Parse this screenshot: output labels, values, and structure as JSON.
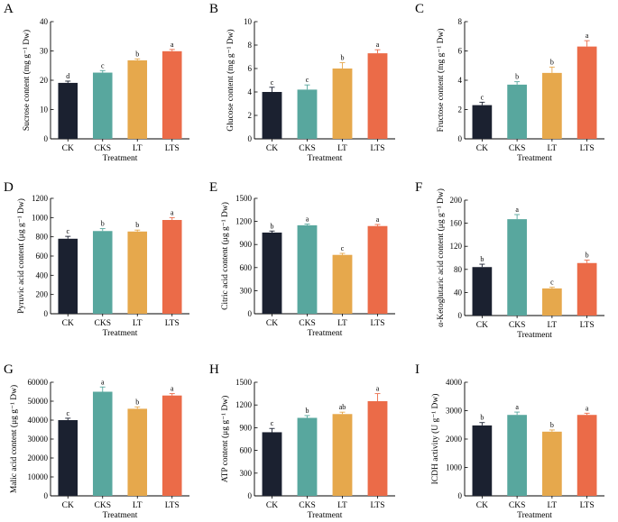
{
  "colors": {
    "CK": "#1b2130",
    "CKS": "#58a79e",
    "LT": "#e6a84c",
    "LTS": "#eb6b48"
  },
  "chart_data": [
    {
      "type": "bar",
      "panel": "A",
      "categories": [
        "CK",
        "CKS",
        "LT",
        "LTS"
      ],
      "values": [
        19.1,
        22.6,
        26.8,
        29.9
      ],
      "errors": [
        0.6,
        0.7,
        0.5,
        0.6
      ],
      "letters": [
        "d",
        "c",
        "b",
        "a"
      ],
      "ylabel": "Sucrose content (mg g⁻¹ Dw)",
      "xlabel": "Treatment",
      "ylim": [
        0,
        40
      ],
      "yticks": [
        0,
        10,
        20,
        30,
        40
      ]
    },
    {
      "type": "bar",
      "panel": "B",
      "categories": [
        "CK",
        "CKS",
        "LT",
        "LTS"
      ],
      "values": [
        4.0,
        4.2,
        6.0,
        7.3
      ],
      "errors": [
        0.4,
        0.4,
        0.5,
        0.3
      ],
      "letters": [
        "c",
        "c",
        "b",
        "a"
      ],
      "ylabel": "Glucose content (mg g⁻¹ Dw)",
      "xlabel": "Treatment",
      "ylim": [
        0,
        10
      ],
      "yticks": [
        0,
        2,
        4,
        6,
        8,
        10
      ]
    },
    {
      "type": "bar",
      "panel": "C",
      "categories": [
        "CK",
        "CKS",
        "LT",
        "LTS"
      ],
      "values": [
        2.3,
        3.7,
        4.5,
        6.3
      ],
      "errors": [
        0.2,
        0.2,
        0.4,
        0.4
      ],
      "letters": [
        "c",
        "b",
        "b",
        "a"
      ],
      "ylabel": "Fructose content (mg g⁻¹ Dw)",
      "xlabel": "Treatment",
      "ylim": [
        0,
        8
      ],
      "yticks": [
        0,
        2,
        4,
        6,
        8
      ]
    },
    {
      "type": "bar",
      "panel": "D",
      "categories": [
        "CK",
        "CKS",
        "LT",
        "LTS"
      ],
      "values": [
        780,
        860,
        855,
        975
      ],
      "errors": [
        25,
        25,
        15,
        25
      ],
      "letters": [
        "c",
        "b",
        "b",
        "a"
      ],
      "ylabel": "Pyruvic acid content (μg g⁻¹ Dw)",
      "xlabel": "Treatment",
      "ylim": [
        0,
        1200
      ],
      "yticks": [
        0,
        200,
        400,
        600,
        800,
        1000,
        1200
      ]
    },
    {
      "type": "bar",
      "panel": "E",
      "categories": [
        "CK",
        "CKS",
        "LT",
        "LTS"
      ],
      "values": [
        1055,
        1150,
        765,
        1140
      ],
      "errors": [
        20,
        15,
        20,
        20
      ],
      "letters": [
        "b",
        "a",
        "c",
        "a"
      ],
      "ylabel": "Citric acid content (μg g⁻¹ Dw)",
      "xlabel": "Treatment",
      "ylim": [
        0,
        1500
      ],
      "yticks": [
        0,
        300,
        600,
        900,
        1200,
        1500
      ]
    },
    {
      "type": "bar",
      "panel": "F",
      "categories": [
        "CK",
        "CKS",
        "LT",
        "LTS"
      ],
      "values": [
        84,
        167,
        47,
        91
      ],
      "errors": [
        5,
        8,
        2,
        5
      ],
      "letters": [
        "b",
        "a",
        "c",
        "b"
      ],
      "ylabel": "α-Ketoglutaric acid content (μg g⁻¹ Dw)",
      "xlabel": "Treatment",
      "ylim": [
        0,
        200
      ],
      "yticks": [
        0,
        40,
        80,
        120,
        160,
        200
      ]
    },
    {
      "type": "bar",
      "panel": "G",
      "categories": [
        "CK",
        "CKS",
        "LT",
        "LTS"
      ],
      "values": [
        40000,
        55000,
        46000,
        53000
      ],
      "errors": [
        1000,
        2500,
        1000,
        1000
      ],
      "letters": [
        "c",
        "a",
        "b",
        "a"
      ],
      "ylabel": "Malic acid content (μg g⁻¹ Dw)",
      "xlabel": "Treatment",
      "ylim": [
        0,
        60000
      ],
      "yticks": [
        0,
        10000,
        20000,
        30000,
        40000,
        50000,
        60000
      ]
    },
    {
      "type": "bar",
      "panel": "H",
      "categories": [
        "CK",
        "CKS",
        "LT",
        "LTS"
      ],
      "values": [
        840,
        1030,
        1080,
        1250
      ],
      "errors": [
        50,
        30,
        25,
        100
      ],
      "letters": [
        "c",
        "b",
        "ab",
        "a"
      ],
      "ylabel": "ATP content (μg g⁻¹ Dw)",
      "xlabel": "Treatment",
      "ylim": [
        0,
        1500
      ],
      "yticks": [
        0,
        300,
        600,
        900,
        1200,
        1500
      ]
    },
    {
      "type": "bar",
      "panel": "I",
      "categories": [
        "CK",
        "CKS",
        "LT",
        "LTS"
      ],
      "values": [
        2480,
        2850,
        2260,
        2850
      ],
      "errors": [
        100,
        100,
        60,
        60
      ],
      "letters": [
        "b",
        "a",
        "b",
        "a"
      ],
      "ylabel": "ICDH activity (U g⁻¹ Dw)",
      "xlabel": "Treatment",
      "ylim": [
        0,
        4000
      ],
      "yticks": [
        0,
        1000,
        2000,
        3000,
        4000
      ]
    }
  ]
}
